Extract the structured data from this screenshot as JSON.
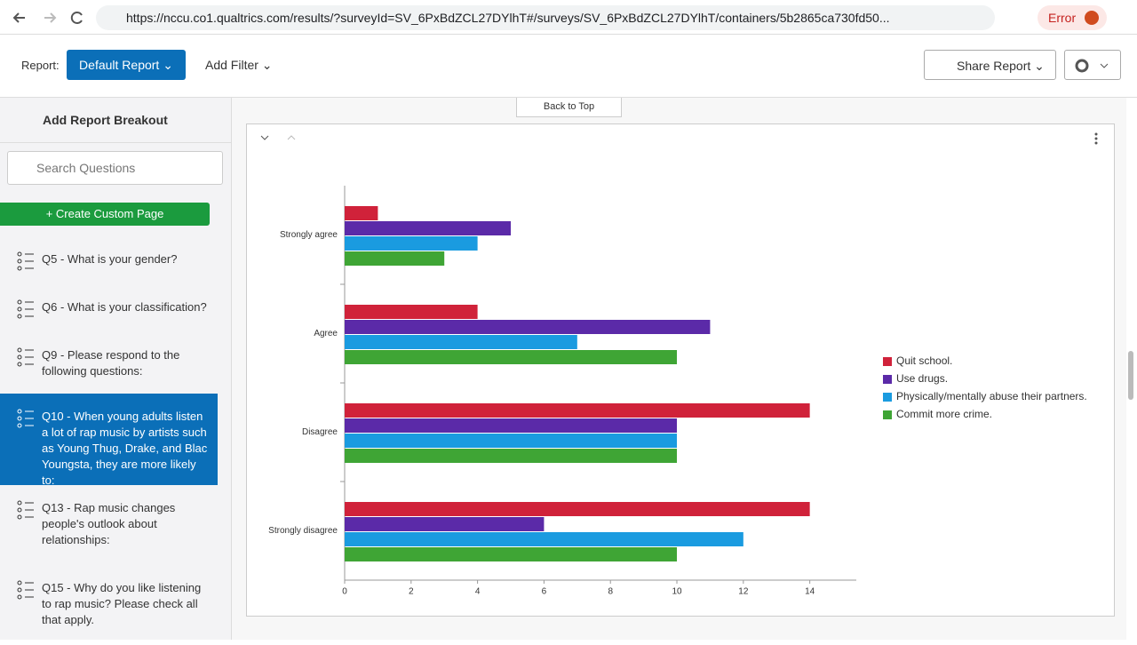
{
  "browser": {
    "url": "https://nccu.co1.qualtrics.com/results/?surveyId=SV_6PxBdZCL27DYlhT#/surveys/SV_6PxBdZCL27DYlhT/containers/5b2865ca730fd50...",
    "error": "Error"
  },
  "toolbar": {
    "report_label": "Report:",
    "report": "Default Report",
    "add_filter": "Add Filter",
    "share": "Share Report"
  },
  "sidebar": {
    "breakout": "Add Report Breakout",
    "search_placeholder": "Search Questions",
    "create": "Create Custom Page",
    "questions": [
      "Q5 - What is your gender?",
      "Q6 - What is your classification?",
      "Q9 - Please respond to the following questions:",
      "Q10 - When young adults listen a lot of rap music by artists such as Young Thug, Drake, and Blac Youngsta, they are more likely to:",
      "Q13 - Rap music changes people's outlook about relationships:",
      "Q15 - Why do you like listening to rap music? Please check all that apply."
    ],
    "selected": 3
  },
  "back_to_top": "Back to Top",
  "chart_data": {
    "type": "hbar",
    "categories": [
      "Strongly agree",
      "Agree",
      "Disagree",
      "Strongly disagree"
    ],
    "series": [
      {
        "name": "Quit school.",
        "color": "#d0223a",
        "values": [
          1,
          4,
          14,
          14
        ]
      },
      {
        "name": "Use drugs.",
        "color": "#5b2aa8",
        "values": [
          5,
          11,
          10,
          6
        ]
      },
      {
        "name": "Physically/mentally abuse their partners.",
        "color": "#1a9be0",
        "values": [
          4,
          7,
          10,
          12
        ]
      },
      {
        "name": "Commit more crime.",
        "color": "#3fa535",
        "values": [
          3,
          10,
          10,
          10
        ]
      }
    ],
    "xlim": [
      0,
      15.4
    ],
    "xticks": [
      0,
      2,
      4,
      6,
      8,
      10,
      12,
      14
    ],
    "legend": "right"
  }
}
